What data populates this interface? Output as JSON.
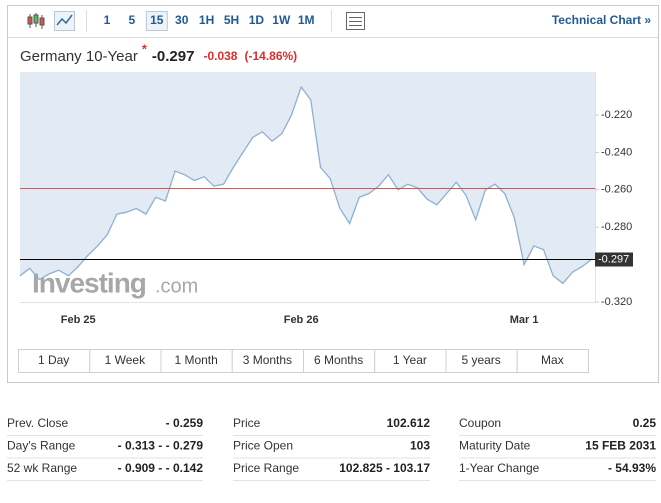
{
  "toolbar": {
    "intervals": [
      {
        "label": "1"
      },
      {
        "label": "5"
      },
      {
        "label": "15",
        "active": true
      },
      {
        "label": "30"
      },
      {
        "label": "1H"
      },
      {
        "label": "5H"
      },
      {
        "label": "1D"
      },
      {
        "label": "1W"
      },
      {
        "label": "1M"
      }
    ],
    "link": "Technical Chart »"
  },
  "header": {
    "name": "Germany 10-Year",
    "price": "-0.297",
    "change": "-0.038",
    "change_pct": "(-14.86%)"
  },
  "chart_data": {
    "type": "line",
    "categories": [
      null,
      null,
      null,
      null,
      null,
      null,
      "Feb 25",
      null,
      null,
      null,
      null,
      null,
      null,
      null,
      null,
      null,
      null,
      null,
      null,
      null,
      null,
      null,
      null,
      null,
      null,
      null,
      null,
      null,
      null,
      "Feb 26",
      null,
      null,
      null,
      null,
      null,
      null,
      null,
      null,
      null,
      null,
      null,
      null,
      null,
      null,
      null,
      null,
      null,
      null,
      null,
      null,
      null,
      null,
      "Mar 1",
      null,
      null,
      null,
      null,
      null,
      null,
      null
    ],
    "values": [
      -0.306,
      -0.302,
      -0.308,
      -0.305,
      -0.303,
      -0.306,
      -0.301,
      -0.295,
      -0.29,
      -0.284,
      -0.273,
      -0.272,
      -0.27,
      -0.273,
      -0.264,
      -0.266,
      -0.25,
      -0.252,
      -0.255,
      -0.253,
      -0.258,
      -0.257,
      -0.248,
      -0.24,
      -0.232,
      -0.229,
      -0.234,
      -0.23,
      -0.22,
      -0.205,
      -0.212,
      -0.248,
      -0.254,
      -0.27,
      -0.278,
      -0.264,
      -0.262,
      -0.258,
      -0.252,
      -0.26,
      -0.257,
      -0.259,
      -0.265,
      -0.268,
      -0.262,
      -0.256,
      -0.263,
      -0.276,
      -0.26,
      -0.257,
      -0.262,
      -0.275,
      -0.3,
      -0.29,
      -0.292,
      -0.306,
      -0.31,
      -0.304,
      -0.301,
      -0.297
    ],
    "color": "#8eb0d6",
    "area_color": "#e2eaf3",
    "ylim": [
      -0.32,
      -0.197
    ],
    "yticks": [
      {
        "value": -0.22,
        "label": "-0.220"
      },
      {
        "value": -0.24,
        "label": "-0.240"
      },
      {
        "value": -0.26,
        "label": "-0.260"
      },
      {
        "value": -0.28,
        "label": "-0.280"
      },
      {
        "value": -0.32,
        "label": "-0.320"
      }
    ],
    "reference_lines": [
      {
        "value": -0.259,
        "color": "#d9534f"
      },
      {
        "value": -0.297,
        "label": "-0.297",
        "color": "#000000"
      }
    ],
    "watermark": {
      "brand": "Investing",
      "suffix": ".com"
    }
  },
  "ranges": [
    "1 Day",
    "1 Week",
    "1 Month",
    "3 Months",
    "6 Months",
    "1 Year",
    "5 years",
    "Max"
  ],
  "stats": [
    [
      [
        "Prev. Close",
        "- 0.259"
      ],
      [
        "Day's Range",
        "- 0.313 - - 0.279"
      ],
      [
        "52 wk Range",
        "- 0.909 - - 0.142"
      ]
    ],
    [
      [
        "Price",
        "102.612"
      ],
      [
        "Price Open",
        "103"
      ],
      [
        "Price Range",
        "102.825 - 103.17"
      ]
    ],
    [
      [
        "Coupon",
        "0.25"
      ],
      [
        "Maturity Date",
        "15 FEB 2031"
      ],
      [
        "1-Year Change",
        "- 54.93%"
      ]
    ]
  ]
}
